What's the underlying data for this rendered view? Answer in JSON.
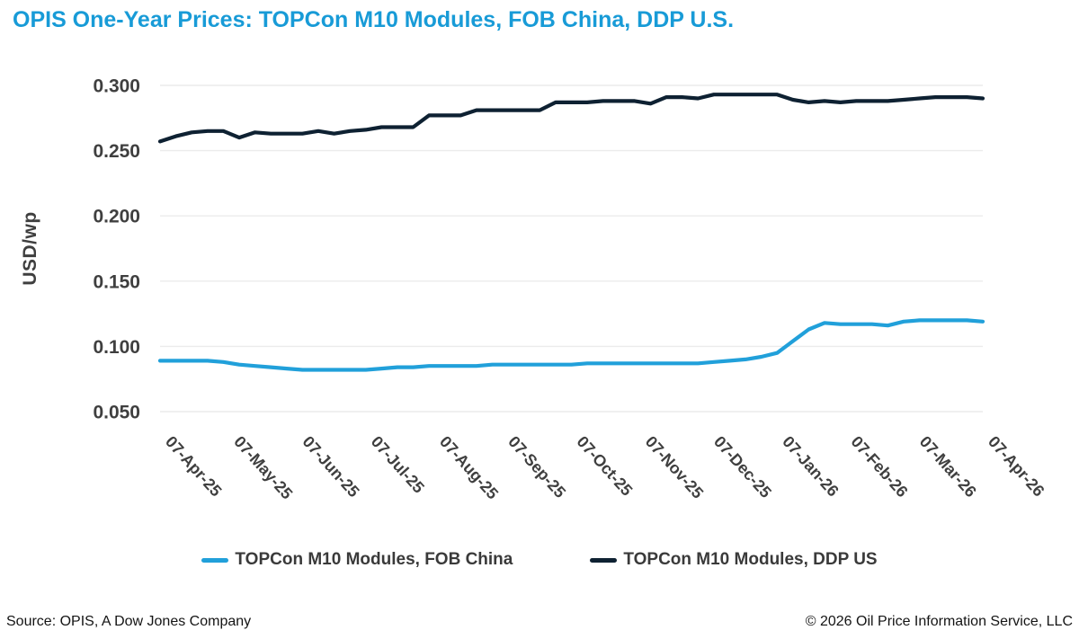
{
  "page": {
    "title": "OPIS One-Year Prices: TOPCon M10 Modules, FOB China, DDP U.S."
  },
  "legend": {
    "items": [
      {
        "label": "TOPCon M10 Modules, FOB China",
        "color": "#21A0DA"
      },
      {
        "label": "TOPCon M10 Modules, DDP US",
        "color": "#0E2132"
      }
    ]
  },
  "footer": {
    "source": "Source: OPIS, A Dow Jones Company",
    "copyright": "© 2026 Oil Price Information Service, LLC"
  },
  "colors": {
    "title": "#189BD7",
    "axis_text": "#3F3F3F",
    "gridline": "#EBEBEB",
    "fob_china_line": "#21A0DA",
    "ddp_us_line": "#0E2132"
  },
  "chart_data": {
    "type": "line",
    "title": "OPIS One-Year Prices: TOPCon M10 Modules, FOB China, DDP U.S.",
    "xlabel": "",
    "ylabel": "USD/wp",
    "ylim": [
      0.05,
      0.3
    ],
    "y_tick_labels": [
      "0.300",
      "0.250",
      "0.200",
      "0.150",
      "0.100",
      "0.050"
    ],
    "x_tick_labels": [
      "07-Apr-25",
      "07-May-25",
      "07-Jun-25",
      "07-Jul-25",
      "07-Aug-25",
      "07-Sep-25",
      "07-Oct-25",
      "07-Nov-25",
      "07-Dec-25",
      "07-Jan-26",
      "07-Feb-26",
      "07-Mar-26",
      "07-Apr-26"
    ],
    "x_interval": "weekly",
    "grid": "horizontal",
    "legend_position": "bottom",
    "series": [
      {
        "key": "fob-china",
        "name": "TOPCon M10 Modules, FOB China",
        "color": "#21A0DA",
        "values": [
          0.089,
          0.089,
          0.089,
          0.089,
          0.088,
          0.086,
          0.085,
          0.084,
          0.083,
          0.082,
          0.082,
          0.082,
          0.082,
          0.082,
          0.083,
          0.084,
          0.084,
          0.085,
          0.085,
          0.085,
          0.085,
          0.086,
          0.086,
          0.086,
          0.086,
          0.086,
          0.086,
          0.087,
          0.087,
          0.087,
          0.087,
          0.087,
          0.087,
          0.087,
          0.087,
          0.088,
          0.089,
          0.09,
          0.092,
          0.095,
          0.104,
          0.113,
          0.118,
          0.117,
          0.117,
          0.117,
          0.116,
          0.119,
          0.12,
          0.12,
          0.12,
          0.12,
          0.119
        ]
      },
      {
        "key": "ddp-us",
        "name": "TOPCon M10 Modules, DDP US",
        "color": "#0E2132",
        "values": [
          0.257,
          0.261,
          0.264,
          0.265,
          0.265,
          0.26,
          0.264,
          0.263,
          0.263,
          0.263,
          0.265,
          0.263,
          0.265,
          0.266,
          0.268,
          0.268,
          0.268,
          0.277,
          0.277,
          0.277,
          0.281,
          0.281,
          0.281,
          0.281,
          0.281,
          0.287,
          0.287,
          0.287,
          0.288,
          0.288,
          0.288,
          0.286,
          0.291,
          0.291,
          0.29,
          0.293,
          0.293,
          0.293,
          0.293,
          0.293,
          0.289,
          0.287,
          0.288,
          0.287,
          0.288,
          0.288,
          0.288,
          0.289,
          0.29,
          0.291,
          0.291,
          0.291,
          0.29
        ]
      }
    ]
  }
}
